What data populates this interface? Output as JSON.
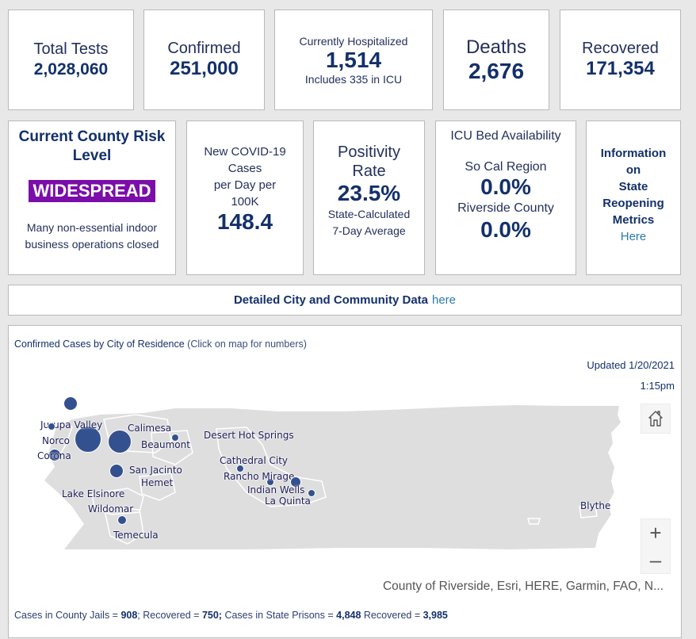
{
  "top_stats": [
    {
      "label": "Total Tests",
      "value": "2,028,060"
    },
    {
      "label": "Confirmed",
      "value": "251,000"
    },
    {
      "label": "Currently Hospitalized",
      "value": "1,514",
      "note": "Includes 335 in ICU"
    },
    {
      "label": "Deaths",
      "value": "2,676"
    },
    {
      "label": "Recovered",
      "value": "171,354"
    }
  ],
  "risk": {
    "title": "Current County Risk Level",
    "badge": "WIDESPREAD",
    "badge_color": "#7b0ea9",
    "desc_line1": "Many non-essential indoor",
    "desc_line2": "business operations closed"
  },
  "new_cases": {
    "line1": "New COVID-19",
    "line2": "Cases",
    "line3": "per Day per",
    "line4": "100K",
    "value": "148.4"
  },
  "positivity": {
    "line1": "Positivity",
    "line2": "Rate",
    "value": "23.5%",
    "note1": "State-Calculated",
    "note2": "7-Day Average"
  },
  "icu": {
    "title": "ICU Bed Availability",
    "region_label": "So Cal Region",
    "region_value": "0.0%",
    "county_label": "Riverside County",
    "county_value": "0.0%"
  },
  "reopening": {
    "line1": "Information",
    "line2": "on",
    "line3": "State",
    "line4": "Reopening",
    "line5": "Metrics",
    "link": "Here"
  },
  "city_data": {
    "text": "Detailed City and Community Data",
    "link": "here"
  },
  "map": {
    "title": "Confirmed Cases by City of Residence",
    "subtitle": "(Click on map for numbers)",
    "updated_date": "Updated 1/20/2021",
    "updated_time": "1:15pm",
    "attribution": "County of Riverside, Esri, HERE, Garmin, FAO, N...",
    "home_icon": "home-icon",
    "zoom_in": "+",
    "zoom_out": "–",
    "cities": [
      "Jurupa Valley",
      "Norco",
      "Corona",
      "Calimesa",
      "Beaumont",
      "San Jacinto",
      "Hemet",
      "Lake Elsinore",
      "Wildomar",
      "Temecula",
      "Desert Hot Springs",
      "Cathedral City",
      "Rancho Mirage",
      "Indian Wells",
      "La Quinta",
      "Blythe"
    ],
    "footer": {
      "jails_label": "Cases in County Jails = ",
      "jails_value": "908",
      "jails_rec_label": "; Recovered = ",
      "jails_rec_value": "750;",
      "prisons_label": " Cases in State Prisons = ",
      "prisons_value": "4,848",
      "prisons_rec_label": " Recovered = ",
      "prisons_rec_value": "3,985"
    }
  },
  "colors": {
    "navy": "#13306b",
    "link": "#2a7ab0",
    "marker": "#34518f",
    "map_fill": "#dedede"
  }
}
